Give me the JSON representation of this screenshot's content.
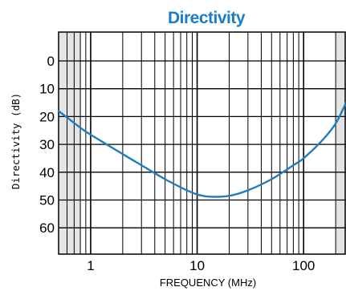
{
  "chart_data": {
    "type": "line",
    "title": "Directivity",
    "xlabel": "FREQUENCY (MHz)",
    "ylabel": "Directivity (dB)",
    "x_scale": "log",
    "xlim": [
      0.5,
      250
    ],
    "ylim": [
      0,
      70
    ],
    "y_inverted": true,
    "x_tick_labels": [
      {
        "value": 1,
        "label": "1"
      },
      {
        "value": 10,
        "label": "10"
      },
      {
        "value": 100,
        "label": "100"
      }
    ],
    "y_tick_labels": [
      {
        "value": 0,
        "label": "0"
      },
      {
        "value": 10,
        "label": "10"
      },
      {
        "value": 20,
        "label": "20"
      },
      {
        "value": 30,
        "label": "30"
      },
      {
        "value": 40,
        "label": "40"
      },
      {
        "value": 50,
        "label": "50"
      },
      {
        "value": 60,
        "label": "60"
      }
    ],
    "shaded_x_ranges": [
      [
        0.5,
        0.8
      ],
      [
        200,
        250
      ]
    ],
    "grid": true,
    "series": [
      {
        "color": "#1f7cc0",
        "points": [
          {
            "x": 0.5,
            "y": 18
          },
          {
            "x": 0.8,
            "y": 24
          },
          {
            "x": 1,
            "y": 26.5
          },
          {
            "x": 2,
            "y": 33.5
          },
          {
            "x": 3,
            "y": 37.5
          },
          {
            "x": 5,
            "y": 42.5
          },
          {
            "x": 8,
            "y": 46.5
          },
          {
            "x": 10,
            "y": 48
          },
          {
            "x": 13,
            "y": 48.8
          },
          {
            "x": 20,
            "y": 48.5
          },
          {
            "x": 30,
            "y": 46.5
          },
          {
            "x": 50,
            "y": 42.5
          },
          {
            "x": 80,
            "y": 37.5
          },
          {
            "x": 100,
            "y": 35
          },
          {
            "x": 150,
            "y": 28.5
          },
          {
            "x": 200,
            "y": 22.5
          },
          {
            "x": 250,
            "y": 15
          }
        ]
      }
    ]
  }
}
